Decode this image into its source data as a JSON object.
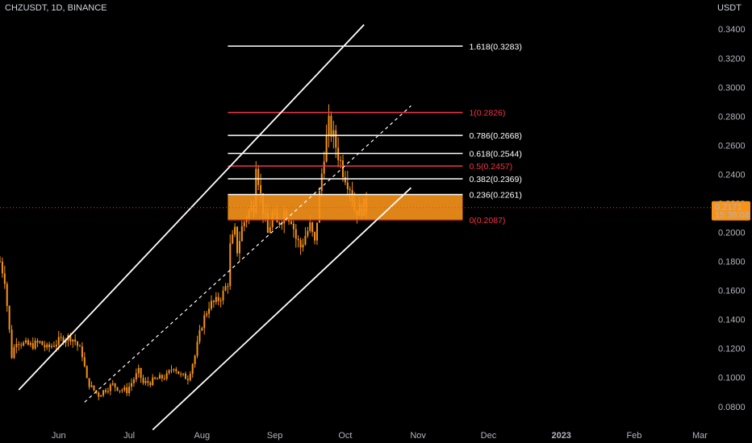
{
  "header": {
    "symbol": "CHZUSDT",
    "interval": "1D",
    "exchange": "BINANCE",
    "title": "CHZUSDT, 1D, BINANCE"
  },
  "price_axis": {
    "currency": "USDT"
  },
  "last_price": {
    "value": "0.2171",
    "countdown": "15:38:08"
  },
  "colors": {
    "background": "#000000",
    "candle": "#f7931a",
    "fib_white": "#ffffff",
    "fib_red": "#f23645",
    "zone": "#f7931a",
    "channel": "#ffffff",
    "badge": "#f7931a",
    "axis_text": "#b2b5be"
  },
  "chart_data": {
    "type": "candlestick",
    "title": "CHZUSDT, 1D, BINANCE",
    "ylabel": "USDT",
    "ylim": [
      0.066,
      0.349
    ],
    "y_ticks": [
      "0.0800",
      "0.1000",
      "0.1200",
      "0.1400",
      "0.1600",
      "0.1800",
      "0.2000",
      "0.2200",
      "0.2400",
      "0.2600",
      "0.2800",
      "0.3000",
      "0.3200",
      "0.3400"
    ],
    "x_ticks": [
      "Jun",
      "Jul",
      "Aug",
      "Sep",
      "Oct",
      "Nov",
      "Dec",
      "2023",
      "Feb",
      "Mar"
    ],
    "x_tick_dates": [
      "2022-06-01",
      "2022-07-01",
      "2022-08-01",
      "2022-09-01",
      "2022-10-01",
      "2022-11-01",
      "2022-12-01",
      "2023-01-01",
      "2023-02-01",
      "2023-03-01"
    ],
    "x_range": [
      "2022-05-07",
      "2023-03-06"
    ],
    "price_path": [
      [
        "2022-05-07",
        0.18
      ],
      [
        "2022-05-09",
        0.168
      ],
      [
        "2022-05-11",
        0.132
      ],
      [
        "2022-05-12",
        0.115
      ],
      [
        "2022-05-14",
        0.126
      ],
      [
        "2022-05-17",
        0.123
      ],
      [
        "2022-05-20",
        0.122
      ],
      [
        "2022-05-24",
        0.124
      ],
      [
        "2022-05-27",
        0.12
      ],
      [
        "2022-05-31",
        0.124
      ],
      [
        "2022-06-03",
        0.127
      ],
      [
        "2022-06-06",
        0.128
      ],
      [
        "2022-06-08",
        0.125
      ],
      [
        "2022-06-11",
        0.116
      ],
      [
        "2022-06-13",
        0.098
      ],
      [
        "2022-06-15",
        0.093
      ],
      [
        "2022-06-18",
        0.088
      ],
      [
        "2022-06-21",
        0.092
      ],
      [
        "2022-06-24",
        0.095
      ],
      [
        "2022-06-27",
        0.092
      ],
      [
        "2022-06-30",
        0.091
      ],
      [
        "2022-07-03",
        0.099
      ],
      [
        "2022-07-05",
        0.104
      ],
      [
        "2022-07-07",
        0.096
      ],
      [
        "2022-07-10",
        0.097
      ],
      [
        "2022-07-13",
        0.099
      ],
      [
        "2022-07-17",
        0.101
      ],
      [
        "2022-07-20",
        0.108
      ],
      [
        "2022-07-23",
        0.101
      ],
      [
        "2022-07-26",
        0.1
      ],
      [
        "2022-07-29",
        0.115
      ],
      [
        "2022-08-01",
        0.137
      ],
      [
        "2022-08-04",
        0.15
      ],
      [
        "2022-08-07",
        0.152
      ],
      [
        "2022-08-10",
        0.158
      ],
      [
        "2022-08-12",
        0.166
      ],
      [
        "2022-08-13",
        0.19
      ],
      [
        "2022-08-15",
        0.2
      ],
      [
        "2022-08-16",
        0.188
      ],
      [
        "2022-08-18",
        0.203
      ],
      [
        "2022-08-20",
        0.212
      ],
      [
        "2022-08-23",
        0.219
      ],
      [
        "2022-08-24",
        0.25
      ],
      [
        "2022-08-26",
        0.225
      ],
      [
        "2022-08-29",
        0.199
      ],
      [
        "2022-08-31",
        0.212
      ],
      [
        "2022-09-02",
        0.205
      ],
      [
        "2022-09-05",
        0.214
      ],
      [
        "2022-09-08",
        0.21
      ],
      [
        "2022-09-10",
        0.196
      ],
      [
        "2022-09-12",
        0.19
      ],
      [
        "2022-09-14",
        0.198
      ],
      [
        "2022-09-16",
        0.204
      ],
      [
        "2022-09-18",
        0.192
      ],
      [
        "2022-09-20",
        0.226
      ],
      [
        "2022-09-22",
        0.255
      ],
      [
        "2022-09-24",
        0.274
      ],
      [
        "2022-09-26",
        0.265
      ],
      [
        "2022-09-28",
        0.254
      ],
      [
        "2022-09-30",
        0.243
      ],
      [
        "2022-10-03",
        0.232
      ],
      [
        "2022-10-05",
        0.216
      ],
      [
        "2022-10-07",
        0.215
      ],
      [
        "2022-10-09",
        0.218
      ],
      [
        "2022-10-10",
        0.217
      ]
    ],
    "current_price": 0.2171,
    "fib_levels": [
      {
        "ratio": "1.618",
        "value": 0.3283,
        "label": "1.618(0.3283)",
        "color": "#ffffff"
      },
      {
        "ratio": "1",
        "value": 0.2826,
        "label": "1(0.2826)",
        "color": "#f23645"
      },
      {
        "ratio": "0.786",
        "value": 0.2668,
        "label": "0.786(0.2668)",
        "color": "#ffffff"
      },
      {
        "ratio": "0.618",
        "value": 0.2544,
        "label": "0.618(0.2544)",
        "color": "#ffffff"
      },
      {
        "ratio": "0.5",
        "value": 0.2457,
        "label": "0.5(0.2457)",
        "color": "#f23645"
      },
      {
        "ratio": "0.382",
        "value": 0.2369,
        "label": "0.382(0.2369)",
        "color": "#ffffff"
      },
      {
        "ratio": "0.236",
        "value": 0.2261,
        "label": "0.236(0.2261)",
        "color": "#ffffff"
      },
      {
        "ratio": "0",
        "value": 0.2087,
        "label": "0(0.2087)",
        "color": "#f23645"
      }
    ],
    "fib_range": [
      "2022-08-12",
      "2022-11-20"
    ],
    "support_zone": {
      "start": "2022-08-12",
      "end": "2022-11-20",
      "low": 0.2087,
      "high": 0.2261
    },
    "channel": {
      "upper": [
        [
          "2022-05-15",
          0.0915
        ],
        [
          "2022-10-09",
          0.3431
        ]
      ],
      "mid": [
        [
          "2022-06-12",
          0.083
        ],
        [
          "2022-10-29",
          0.2872
        ]
      ],
      "lower": [
        [
          "2022-07-11",
          0.064
        ],
        [
          "2022-10-29",
          0.2307
        ]
      ],
      "style": {
        "upper": "solid",
        "mid": "dashed",
        "lower": "solid"
      }
    },
    "grid": false,
    "legend": "none"
  }
}
